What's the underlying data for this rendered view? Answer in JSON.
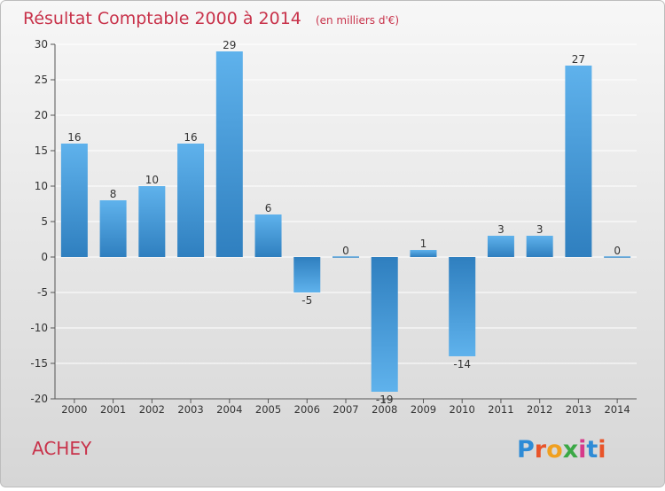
{
  "header": {
    "title": "Résultat Comptable 2000 à 2014",
    "unit": "(en milliers d'€)"
  },
  "footer": {
    "commune": "ACHEY",
    "brand": "Proxiti"
  },
  "colors": {
    "title": "#c8324a",
    "bar_dark": "#2f7fbf",
    "bar_light": "#5fb2ec",
    "text": "#333333",
    "axis": "#555555",
    "grid": "#ffffff"
  },
  "chart_data": {
    "type": "bar",
    "categories": [
      "2000",
      "2001",
      "2002",
      "2003",
      "2004",
      "2005",
      "2006",
      "2007",
      "2008",
      "2009",
      "2010",
      "2011",
      "2012",
      "2013",
      "2014"
    ],
    "values": [
      16,
      8,
      10,
      16,
      29,
      6,
      -5,
      0,
      -19,
      1,
      -14,
      3,
      3,
      27,
      0
    ],
    "value_labels": [
      "16",
      "8",
      "10",
      "16",
      "29",
      "6",
      "-5",
      "0",
      "-19",
      "1",
      "-14",
      "3",
      "3",
      "27",
      "0"
    ],
    "ylim": [
      -20,
      30
    ],
    "yticks": [
      -20,
      -15,
      -10,
      -5,
      0,
      5,
      10,
      15,
      20,
      25,
      30
    ],
    "grid": true,
    "legend": "none"
  }
}
